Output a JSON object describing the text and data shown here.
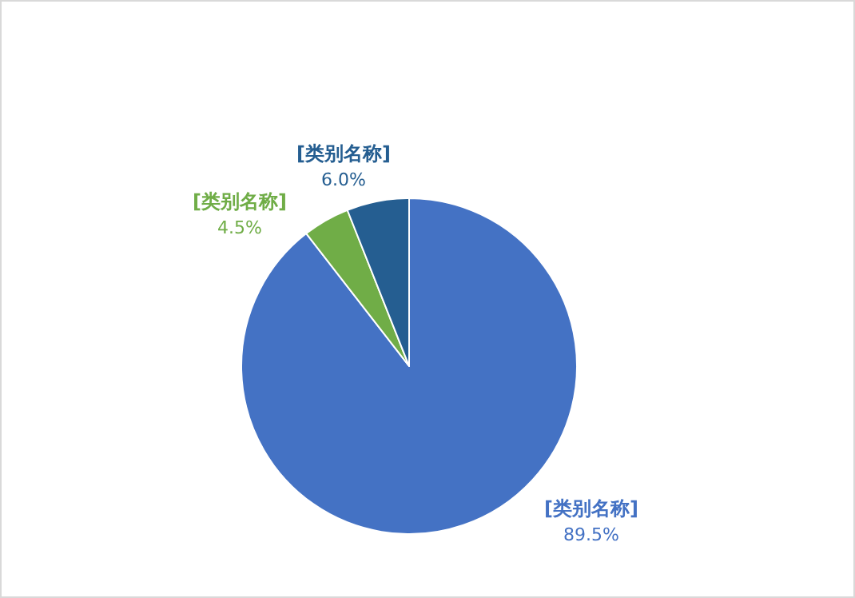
{
  "chart_data": {
    "type": "pie",
    "categories": [
      "[类别名称]",
      "[类别名称]",
      "[类别名称]"
    ],
    "values": [
      89.5,
      4.5,
      6.0
    ],
    "value_labels": [
      "89.5%",
      "4.5%",
      "6.0%"
    ],
    "colors": [
      "#4472c4",
      "#70ad47",
      "#255e91"
    ]
  }
}
